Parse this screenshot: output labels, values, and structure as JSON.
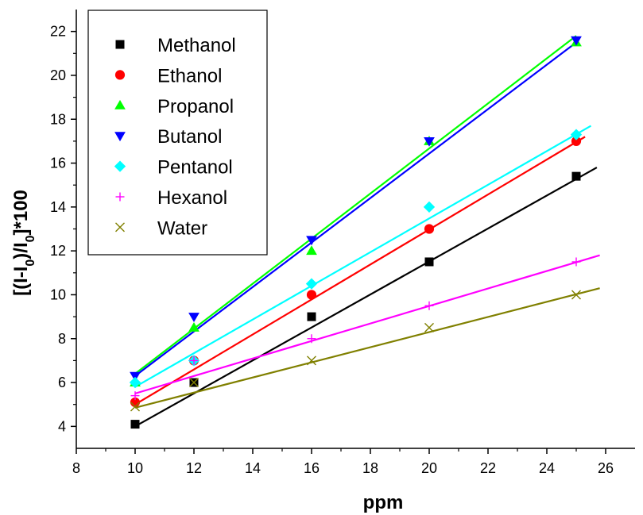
{
  "chart_data": {
    "type": "scatter",
    "title": "",
    "xlabel": "ppm",
    "ylabel_parts": [
      "[(I-I",
      "0",
      ")/I",
      "0",
      "]*100"
    ],
    "xlim": [
      8,
      27
    ],
    "ylim": [
      3,
      23
    ],
    "x_ticks": [
      8,
      10,
      12,
      14,
      16,
      18,
      20,
      22,
      24,
      26
    ],
    "y_ticks": [
      4,
      6,
      8,
      10,
      12,
      14,
      16,
      18,
      20,
      22
    ],
    "grid": false,
    "legend_position": "top-left",
    "series": [
      {
        "name": "Methanol",
        "color": "#000000",
        "marker": "square",
        "points": [
          [
            10,
            4.1
          ],
          [
            12,
            6.0
          ],
          [
            16,
            9.0
          ],
          [
            20,
            11.5
          ],
          [
            25,
            15.4
          ]
        ],
        "fit": [
          [
            10,
            4.0
          ],
          [
            25.7,
            15.8
          ]
        ]
      },
      {
        "name": "Ethanol",
        "color": "#ff0000",
        "marker": "circle",
        "points": [
          [
            10,
            5.1
          ],
          [
            12,
            7.0
          ],
          [
            16,
            10.0
          ],
          [
            20,
            13.0
          ],
          [
            25,
            17.0
          ]
        ],
        "fit": [
          [
            10,
            5.0
          ],
          [
            25.3,
            17.2
          ]
        ]
      },
      {
        "name": "Propanol",
        "color": "#00ff00",
        "marker": "triangle-up",
        "points": [
          [
            10,
            6.0
          ],
          [
            12,
            8.5
          ],
          [
            16,
            12.0
          ],
          [
            20,
            17.0
          ],
          [
            25,
            21.5
          ]
        ],
        "fit": [
          [
            10,
            6.4
          ],
          [
            25.0,
            21.8
          ]
        ]
      },
      {
        "name": "Butanol",
        "color": "#0000ff",
        "marker": "triangle-down",
        "points": [
          [
            10,
            6.3
          ],
          [
            12,
            9.0
          ],
          [
            16,
            12.5
          ],
          [
            20,
            17.0
          ],
          [
            25,
            21.6
          ]
        ],
        "fit": [
          [
            10,
            6.3
          ],
          [
            25.0,
            21.5
          ]
        ]
      },
      {
        "name": "Pentanol",
        "color": "#00ffff",
        "marker": "diamond",
        "points": [
          [
            10,
            6.0
          ],
          [
            12,
            7.0
          ],
          [
            16,
            10.5
          ],
          [
            20,
            14.0
          ],
          [
            25,
            17.3
          ]
        ],
        "fit": [
          [
            10,
            5.8
          ],
          [
            25.5,
            17.7
          ]
        ]
      },
      {
        "name": "Hexanol",
        "color": "#ff00ff",
        "marker": "plus",
        "points": [
          [
            10,
            5.4
          ],
          [
            12,
            7.0
          ],
          [
            16,
            8.0
          ],
          [
            20,
            9.5
          ],
          [
            25,
            11.5
          ]
        ],
        "fit": [
          [
            10,
            5.5
          ],
          [
            25.8,
            11.8
          ]
        ]
      },
      {
        "name": "Water",
        "color": "#808000",
        "marker": "x",
        "points": [
          [
            10,
            4.9
          ],
          [
            12,
            6.0
          ],
          [
            16,
            7.0
          ],
          [
            20,
            8.5
          ],
          [
            25,
            10.0
          ]
        ],
        "fit": [
          [
            10,
            4.85
          ],
          [
            25.8,
            10.3
          ]
        ]
      }
    ]
  }
}
